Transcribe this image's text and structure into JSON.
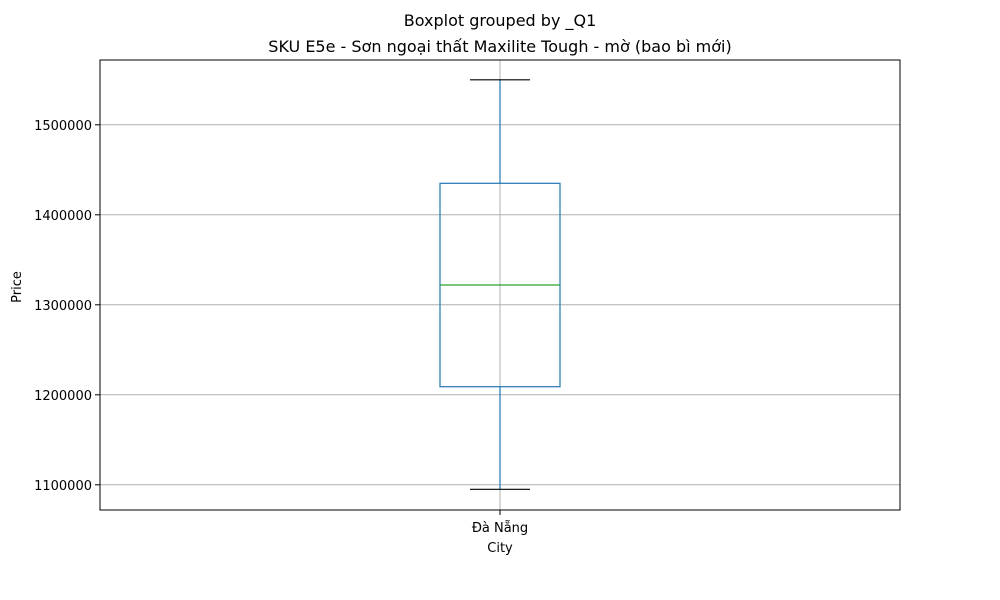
{
  "chart_data": {
    "type": "box",
    "suptitle": "Boxplot grouped by _Q1",
    "title": "SKU E5e - Sơn ngoại thất Maxilite Tough - mờ (bao bì mới)",
    "xlabel": "City",
    "ylabel": "Price",
    "categories": [
      "Đà Nẵng"
    ],
    "boxes": [
      {
        "category": "Đà Nẵng",
        "whisker_low": 1095000,
        "q1": 1209000,
        "median": 1322000,
        "q3": 1435000,
        "whisker_high": 1550000
      }
    ],
    "ylim": [
      1072000,
      1572000
    ],
    "yticks": [
      1100000,
      1200000,
      1300000,
      1400000,
      1500000
    ],
    "ytick_labels": [
      "1100000",
      "1200000",
      "1300000",
      "1400000",
      "1500000"
    ],
    "grid": true,
    "colors": {
      "box": "#1f77b4",
      "median": "#2ca02c",
      "cap": "#000000",
      "grid": "#b0b0b0"
    }
  }
}
